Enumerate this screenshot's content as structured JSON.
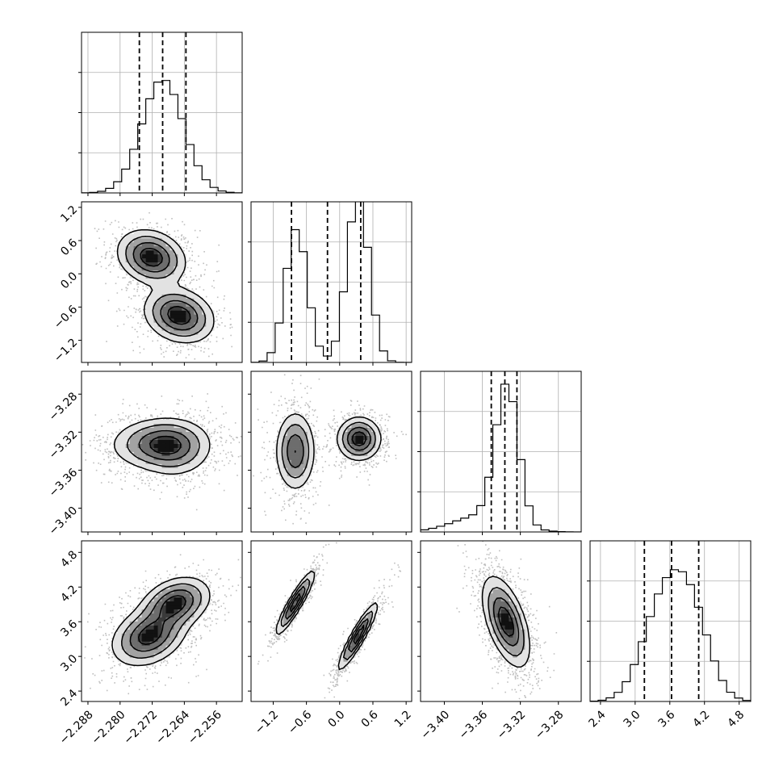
{
  "chart_data": {
    "type": "corner",
    "parameters": [
      {
        "ticks": [
          "−2.288",
          "−2.280",
          "−2.272",
          "−2.264",
          "−2.256"
        ],
        "tick_values": [
          -2.288,
          -2.28,
          -2.272,
          -2.264,
          -2.256
        ],
        "range": [
          -2.2896,
          -2.2496
        ]
      },
      {
        "ticks": [
          "−1.2",
          "−0.6",
          "0.0",
          "0.6",
          "1.2"
        ],
        "tick_values": [
          -1.2,
          -0.6,
          0.0,
          0.6,
          1.2
        ],
        "range": [
          -1.6,
          1.3
        ]
      },
      {
        "ticks": [
          "−3.40",
          "−3.36",
          "−3.32",
          "−3.28"
        ],
        "tick_values": [
          -3.4,
          -3.36,
          -3.32,
          -3.28
        ],
        "range": [
          -3.425,
          -3.256
        ]
      },
      {
        "ticks": [
          "2.4",
          "3.0",
          "3.6",
          "4.2",
          "4.8"
        ],
        "tick_values": [
          2.4,
          3.0,
          3.6,
          4.2,
          4.8
        ],
        "range": [
          2.22,
          5.0
        ]
      }
    ],
    "histograms": [
      {
        "quantiles": [
          -2.2752,
          -2.2694,
          -2.2636
        ],
        "peak": 0.7,
        "grid": true,
        "mixture": [
          {
            "mu": -2.2694,
            "sigma": 0.0052,
            "w": 1
          }
        ]
      },
      {
        "quantiles": [
          -0.87,
          -0.22,
          0.38
        ],
        "peak": 1.03,
        "grid": true,
        "mixture": [
          {
            "mu": -0.78,
            "sigma": 0.2,
            "w": 0.8
          },
          {
            "mu": 0.33,
            "sigma": 0.2,
            "w": 1.0
          }
        ]
      },
      {
        "quantiles": [
          -3.3506,
          -3.3363,
          -3.3236
        ],
        "peak": 0.92,
        "grid": true,
        "mixture": [
          {
            "mu": -3.334,
            "sigma": 0.012,
            "w": 1
          },
          {
            "mu": -3.36,
            "sigma": 0.03,
            "w": 0.12
          }
        ]
      },
      {
        "quantiles": [
          3.16,
          3.63,
          4.1
        ],
        "peak": 0.82,
        "grid": true,
        "mixture": [
          {
            "mu": 3.45,
            "sigma": 0.35,
            "w": 1
          },
          {
            "mu": 3.95,
            "sigma": 0.33,
            "w": 1
          }
        ]
      }
    ],
    "pairs": [
      {
        "row": 1,
        "col": 0,
        "corr_note": "bimodal",
        "components": [
          {
            "mx": -2.2722,
            "my": 0.3,
            "sx": 0.0041,
            "sy": 0.24,
            "rho": -0.2,
            "w": 1
          },
          {
            "mx": -2.2653,
            "my": -0.75,
            "sx": 0.0042,
            "sy": 0.24,
            "rho": -0.2,
            "w": 1
          }
        ]
      },
      {
        "row": 2,
        "col": 0,
        "components": [
          {
            "mx": -2.2705,
            "my": -3.332,
            "sx": 0.0058,
            "sy": 0.013,
            "rho": 0.05,
            "w": 1
          },
          {
            "mx": -2.2664,
            "my": -3.338,
            "sx": 0.0045,
            "sy": 0.015,
            "rho": 0.0,
            "w": 0.6
          }
        ]
      },
      {
        "row": 2,
        "col": 1,
        "components": [
          {
            "mx": -0.8,
            "my": -3.34,
            "sx": 0.17,
            "sy": 0.02,
            "rho": 0.0,
            "w": 0.8
          },
          {
            "mx": 0.35,
            "my": -3.327,
            "sx": 0.19,
            "sy": 0.011,
            "rho": 0.0,
            "w": 1
          }
        ]
      },
      {
        "row": 3,
        "col": 0,
        "components": [
          {
            "mx": -2.2728,
            "my": 3.35,
            "sx": 0.0045,
            "sy": 0.25,
            "rho": 0.3,
            "w": 1
          },
          {
            "mx": -2.2662,
            "my": 3.92,
            "sx": 0.0042,
            "sy": 0.22,
            "rho": 0.3,
            "w": 1
          }
        ]
      },
      {
        "row": 3,
        "col": 1,
        "components": [
          {
            "mx": -0.8,
            "my": 3.93,
            "sx": 0.17,
            "sy": 0.27,
            "rho": 0.92,
            "w": 1
          },
          {
            "mx": 0.33,
            "my": 3.35,
            "sx": 0.17,
            "sy": 0.28,
            "rho": 0.92,
            "w": 1
          }
        ]
      },
      {
        "row": 3,
        "col": 2,
        "components": [
          {
            "mx": -3.335,
            "my": 3.6,
            "sx": 0.012,
            "sy": 0.38,
            "rho": -0.55,
            "w": 1
          }
        ]
      }
    ]
  }
}
